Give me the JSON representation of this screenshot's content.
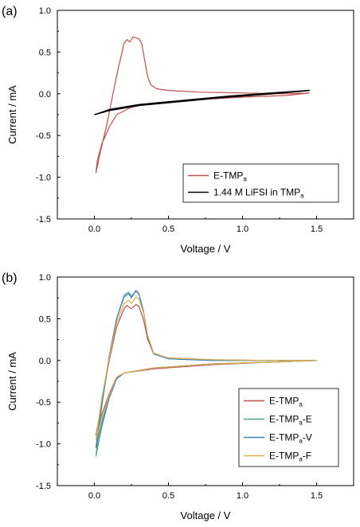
{
  "chart_data": [
    {
      "type": "line",
      "panel_label": "(a)",
      "xlabel": "Voltage / V",
      "ylabel": "Current / mA",
      "xlim": [
        -0.25,
        1.75
      ],
      "ylim": [
        -1.5,
        1.0
      ],
      "xticks": [
        0.0,
        0.5,
        1.0,
        1.5
      ],
      "yticks": [
        1.0,
        0.5,
        0.0,
        -0.5,
        -1.0,
        -1.5
      ],
      "xtick_labels": [
        "0.0",
        "0.5",
        "1.0",
        "1.5"
      ],
      "ytick_labels": [
        "1.0",
        "0.5",
        "0.0",
        "-0.5",
        "-1.0",
        "-1.5"
      ],
      "legend_position": "lower-right",
      "series": [
        {
          "name": "E-TMP",
          "name_subscript": "a",
          "color": "#c0504d",
          "x": [
            0.01,
            0.04,
            0.08,
            0.12,
            0.16,
            0.2,
            0.22,
            0.24,
            0.26,
            0.28,
            0.3,
            0.32,
            0.34,
            0.36,
            0.38,
            0.42,
            0.5,
            0.7,
            1.0,
            1.3,
            1.45,
            1.3,
            1.0,
            0.7,
            0.4,
            0.25,
            0.15,
            0.1,
            0.05,
            0.02,
            0.01
          ],
          "y": [
            -0.95,
            -0.7,
            -0.4,
            -0.05,
            0.3,
            0.6,
            0.65,
            0.62,
            0.68,
            0.67,
            0.66,
            0.6,
            0.4,
            0.2,
            0.11,
            0.06,
            0.04,
            0.02,
            0.01,
            0.0,
            0.01,
            -0.02,
            -0.04,
            -0.07,
            -0.11,
            -0.16,
            -0.25,
            -0.4,
            -0.6,
            -0.8,
            -0.95
          ]
        },
        {
          "name": "1.44 M LiFSI in TMP",
          "name_subscript": "a",
          "color": "#000000",
          "x": [
            0.0,
            0.1,
            0.3,
            0.6,
            0.9,
            1.2,
            1.45,
            1.2,
            0.9,
            0.6,
            0.3,
            0.1,
            0.02,
            0.0
          ],
          "y": [
            -0.25,
            -0.2,
            -0.14,
            -0.09,
            -0.04,
            0.0,
            0.04,
            0.01,
            -0.03,
            -0.08,
            -0.13,
            -0.19,
            -0.24,
            -0.25
          ]
        }
      ]
    },
    {
      "type": "line",
      "panel_label": "(b)",
      "xlabel": "Voltage / V",
      "ylabel": "Current / mA",
      "xlim": [
        -0.25,
        1.75
      ],
      "ylim": [
        -1.5,
        1.0
      ],
      "xticks": [
        0.0,
        0.5,
        1.0,
        1.5
      ],
      "yticks": [
        1.0,
        0.5,
        0.0,
        -0.5,
        -1.0,
        -1.5
      ],
      "xtick_labels": [
        "0.0",
        "0.5",
        "1.0",
        "1.5"
      ],
      "ytick_labels": [
        "1.0",
        "0.5",
        "0.0",
        "-0.5",
        "-1.0",
        "-1.5"
      ],
      "legend_position": "lower-right",
      "series": [
        {
          "name": "E-TMP",
          "name_subscript": "a",
          "color": "#c0504d",
          "x": [
            0.01,
            0.05,
            0.1,
            0.15,
            0.2,
            0.22,
            0.25,
            0.28,
            0.3,
            0.33,
            0.36,
            0.4,
            0.5,
            0.8,
            1.2,
            1.5,
            1.2,
            0.8,
            0.4,
            0.2,
            0.15,
            0.1,
            0.05,
            0.01
          ],
          "y": [
            -0.9,
            -0.5,
            0.0,
            0.4,
            0.62,
            0.66,
            0.62,
            0.67,
            0.65,
            0.5,
            0.25,
            0.08,
            0.03,
            0.01,
            0.0,
            0.0,
            -0.02,
            -0.05,
            -0.1,
            -0.15,
            -0.2,
            -0.4,
            -0.65,
            -0.9
          ]
        },
        {
          "name": "E-TMP",
          "name_subscript": "a",
          "name_suffix": "-E",
          "color": "#4aa58c",
          "x": [
            0.01,
            0.05,
            0.1,
            0.15,
            0.2,
            0.23,
            0.25,
            0.28,
            0.3,
            0.33,
            0.36,
            0.4,
            0.5,
            0.8,
            1.2,
            1.5,
            1.2,
            0.8,
            0.4,
            0.2,
            0.15,
            0.1,
            0.05,
            0.01
          ],
          "y": [
            -1.15,
            -0.55,
            0.05,
            0.5,
            0.78,
            0.82,
            0.77,
            0.83,
            0.8,
            0.6,
            0.28,
            0.08,
            0.02,
            0.0,
            0.0,
            0.0,
            -0.02,
            -0.04,
            -0.09,
            -0.15,
            -0.22,
            -0.45,
            -0.8,
            -1.15
          ]
        },
        {
          "name": "E-TMP",
          "name_subscript": "a",
          "name_suffix": "-V",
          "color": "#3f7fb4",
          "x": [
            0.01,
            0.05,
            0.1,
            0.15,
            0.2,
            0.23,
            0.25,
            0.28,
            0.3,
            0.33,
            0.36,
            0.4,
            0.5,
            0.8,
            1.2,
            1.5,
            1.2,
            0.8,
            0.4,
            0.2,
            0.15,
            0.1,
            0.05,
            0.01
          ],
          "y": [
            -1.05,
            -0.5,
            0.05,
            0.5,
            0.76,
            0.8,
            0.75,
            0.84,
            0.8,
            0.6,
            0.28,
            0.08,
            0.02,
            0.0,
            0.0,
            0.0,
            -0.02,
            -0.04,
            -0.09,
            -0.15,
            -0.22,
            -0.45,
            -0.75,
            -1.05
          ]
        },
        {
          "name": "E-TMP",
          "name_subscript": "a",
          "name_suffix": "-F",
          "color": "#e0b050",
          "x": [
            0.01,
            0.05,
            0.1,
            0.15,
            0.2,
            0.23,
            0.25,
            0.28,
            0.3,
            0.33,
            0.36,
            0.4,
            0.5,
            0.8,
            1.2,
            1.5,
            1.2,
            0.8,
            0.4,
            0.2,
            0.15,
            0.1,
            0.05,
            0.01
          ],
          "y": [
            -0.95,
            -0.45,
            0.03,
            0.45,
            0.68,
            0.72,
            0.68,
            0.76,
            0.74,
            0.58,
            0.3,
            0.09,
            0.03,
            0.01,
            0.0,
            0.0,
            -0.02,
            -0.04,
            -0.09,
            -0.15,
            -0.2,
            -0.42,
            -0.7,
            -0.95
          ]
        }
      ]
    }
  ]
}
